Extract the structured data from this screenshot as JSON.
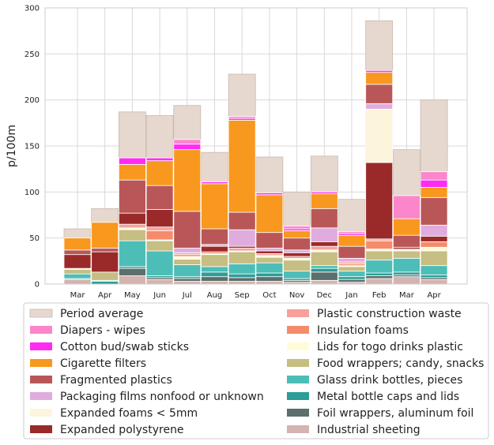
{
  "chart_data": {
    "type": "bar",
    "ylabel": "p/100m",
    "xlabel": "",
    "ylim": [
      0,
      300
    ],
    "yticks": [
      0,
      50,
      100,
      150,
      200,
      250,
      300
    ],
    "grid": true,
    "legend_position": "bottom",
    "categories": [
      "Mar",
      "Apr",
      "May",
      "Jun",
      "Jul",
      "Aug",
      "Sep",
      "Oct",
      "Nov",
      "Dec",
      "Jan",
      "Feb",
      "Mar",
      "Apr"
    ],
    "period_average": {
      "name": "Period average",
      "color": "#e6d8cf",
      "values": [
        60,
        82,
        187,
        183,
        194,
        143,
        228,
        138,
        100,
        139,
        92,
        286,
        146,
        200
      ]
    },
    "series": [
      {
        "name": "Industrial sheeting",
        "color": "#d4b4b0",
        "values": [
          5,
          0,
          9,
          5,
          3,
          3,
          3,
          3,
          2,
          4,
          2,
          6,
          8,
          5
        ]
      },
      {
        "name": "Foil wrappers, aluminum foil",
        "color": "#5b6f6c",
        "values": [
          0,
          0,
          8,
          2,
          3,
          5,
          4,
          5,
          2,
          9,
          3,
          3,
          2,
          2
        ]
      },
      {
        "name": "Metal bottle caps and lids",
        "color": "#2c9d98",
        "values": [
          1,
          3,
          2,
          2,
          2,
          5,
          4,
          4,
          2,
          4,
          3,
          3,
          3,
          3
        ]
      },
      {
        "name": "Glass drink bottles, pieces",
        "color": "#4dbdb7",
        "values": [
          5,
          1,
          28,
          27,
          13,
          6,
          11,
          11,
          8,
          3,
          6,
          14,
          15,
          10
        ]
      },
      {
        "name": "Food wrappers; candy, snacks",
        "color": "#c6be82",
        "values": [
          5,
          9,
          12,
          11,
          6,
          13,
          13,
          6,
          12,
          15,
          5,
          10,
          8,
          16
        ]
      },
      {
        "name": "Lids for togo drinks plastic",
        "color": "#fefbd8",
        "values": [
          1,
          0,
          2,
          1,
          3,
          1,
          1,
          2,
          2,
          2,
          1,
          2,
          1,
          4
        ]
      },
      {
        "name": "Insulation foams",
        "color": "#f48c6b",
        "values": [
          0,
          0,
          0,
          10,
          2,
          2,
          0,
          0,
          2,
          0,
          2,
          9,
          0,
          6
        ]
      },
      {
        "name": "Plastic construction waste",
        "color": "#f8a19a",
        "values": [
          0,
          0,
          4,
          4,
          2,
          0,
          3,
          2,
          0,
          4,
          2,
          2,
          1,
          0
        ]
      },
      {
        "name": "Expanded polystyrene",
        "color": "#9a2a2a",
        "values": [
          15,
          22,
          12,
          19,
          0,
          6,
          2,
          3,
          4,
          5,
          0,
          83,
          2,
          6
        ]
      },
      {
        "name": "Expanded foams < 5mm",
        "color": "#fcf5dc",
        "values": [
          0,
          0,
          0,
          0,
          0,
          0,
          0,
          0,
          0,
          0,
          0,
          58,
          0,
          0
        ]
      },
      {
        "name": "Packaging films nonfood or unknown",
        "color": "#e0acde",
        "values": [
          0,
          0,
          0,
          0,
          5,
          2,
          18,
          3,
          3,
          15,
          4,
          6,
          0,
          12
        ]
      },
      {
        "name": "Fragmented plastics",
        "color": "#b95758",
        "values": [
          5,
          4,
          36,
          26,
          40,
          17,
          19,
          17,
          13,
          21,
          13,
          21,
          13,
          30
        ]
      },
      {
        "name": "Cigarette filters",
        "color": "#f8981e",
        "values": [
          13,
          28,
          17,
          27,
          67,
          49,
          100,
          41,
          8,
          16,
          12,
          13,
          18,
          11
        ]
      },
      {
        "name": "Cotton bud/swab sticks",
        "color": "#ff2bf4",
        "values": [
          0,
          0,
          7,
          3,
          6,
          2,
          2,
          2,
          2,
          2,
          2,
          2,
          0,
          8
        ]
      },
      {
        "name": "Diapers - wipes",
        "color": "#fb86cb",
        "values": [
          0,
          0,
          0,
          0,
          5,
          0,
          2,
          0,
          3,
          0,
          2,
          0,
          25,
          9
        ]
      }
    ],
    "legend": {
      "left_column": [
        "Period average",
        "Diapers - wipes",
        "Cotton bud/swab sticks",
        "Cigarette filters",
        "Fragmented plastics",
        "Packaging films nonfood or unknown",
        "Expanded foams < 5mm",
        "Expanded polystyrene"
      ],
      "right_column": [
        "Plastic construction waste",
        "Insulation foams",
        "Lids for togo drinks plastic",
        "Food wrappers; candy, snacks",
        "Glass drink bottles, pieces",
        "Metal bottle caps and lids",
        "Foil wrappers, aluminum foil",
        "Industrial sheeting"
      ]
    }
  }
}
